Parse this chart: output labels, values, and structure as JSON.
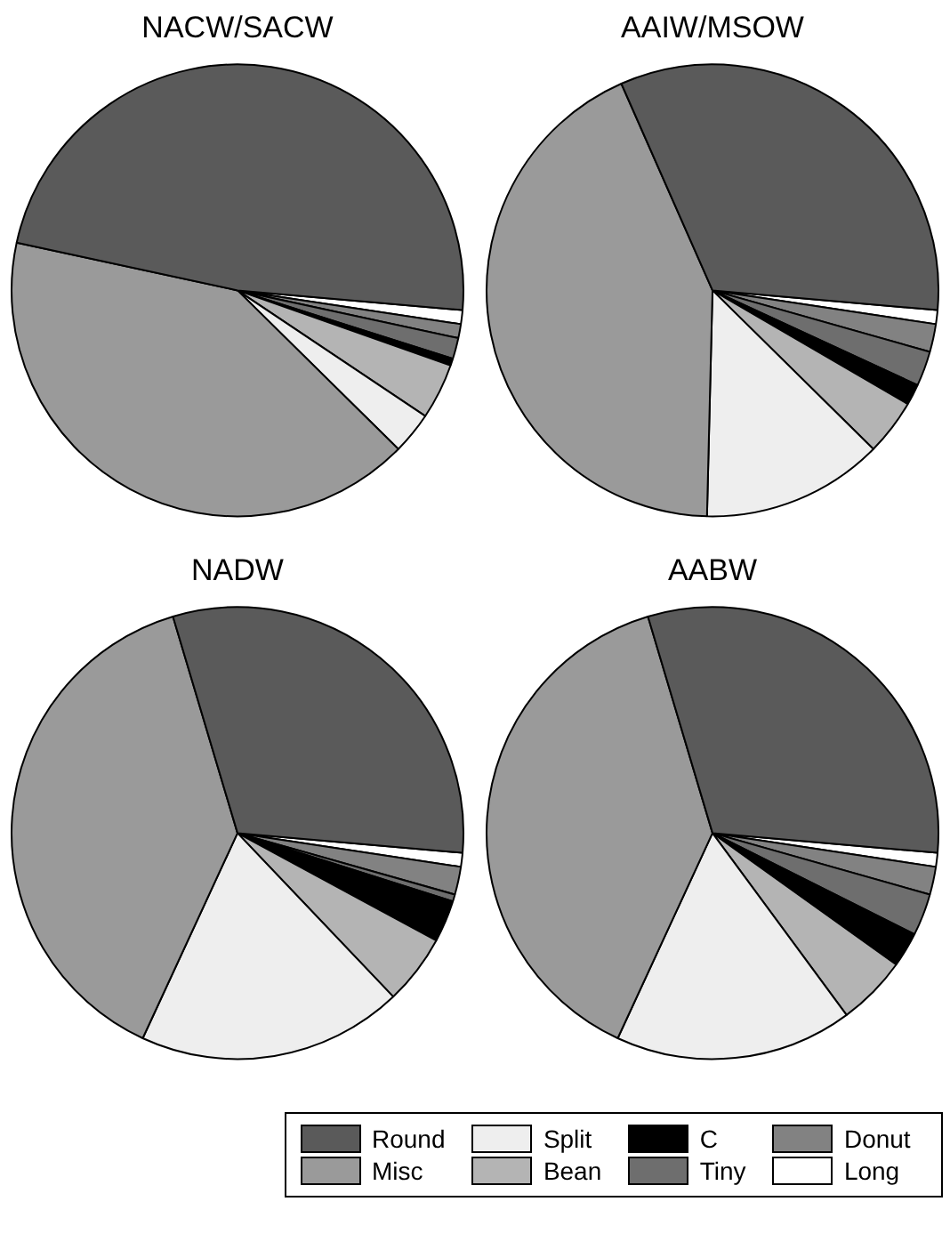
{
  "chart_data": [
    {
      "type": "pie",
      "title": "NACW/SACW",
      "categories": [
        "Round",
        "Misc",
        "Split",
        "Bean",
        "C",
        "Tiny",
        "Donut",
        "Long"
      ],
      "values": [
        48,
        41,
        3,
        4,
        0.5,
        1.5,
        1,
        1
      ],
      "colors": [
        "#5a5a5a",
        "#9a9a9a",
        "#eeeeee",
        "#b4b4b4",
        "#000000",
        "#6e6e6e",
        "#828282",
        "#ffffff"
      ],
      "legend": "bottom"
    },
    {
      "type": "pie",
      "title": "AAIW/MSOW",
      "categories": [
        null,
        null,
        null,
        null,
        null,
        null,
        null,
        null
      ],
      "values": [
        33,
        43,
        13,
        4,
        1.5,
        2.5,
        2,
        1
      ],
      "colors": [
        "#5a5a5a",
        "#9a9a9a",
        "#eeeeee",
        "#b4b4b4",
        "#000000",
        "#6e6e6e",
        "#828282",
        "#ffffff"
      ]
    },
    {
      "type": "pie",
      "title": "NADW",
      "categories": [
        null,
        null,
        null,
        null,
        null,
        null,
        null,
        null
      ],
      "values": [
        31,
        38.5,
        19,
        5,
        3,
        0.5,
        2,
        1
      ],
      "colors": [
        "#5a5a5a",
        "#9a9a9a",
        "#eeeeee",
        "#b4b4b4",
        "#000000",
        "#6e6e6e",
        "#828282",
        "#ffffff"
      ]
    },
    {
      "type": "pie",
      "title": "AABW",
      "categories": [
        null,
        null,
        null,
        null,
        null,
        null,
        null,
        null
      ],
      "values": [
        31,
        38.5,
        17,
        5,
        2.5,
        3,
        2,
        1
      ],
      "colors": [
        "#5a5a5a",
        "#9a9a9a",
        "#eeeeee",
        "#b4b4b4",
        "#000000",
        "#6e6e6e",
        "#828282",
        "#ffffff"
      ]
    }
  ]
}
